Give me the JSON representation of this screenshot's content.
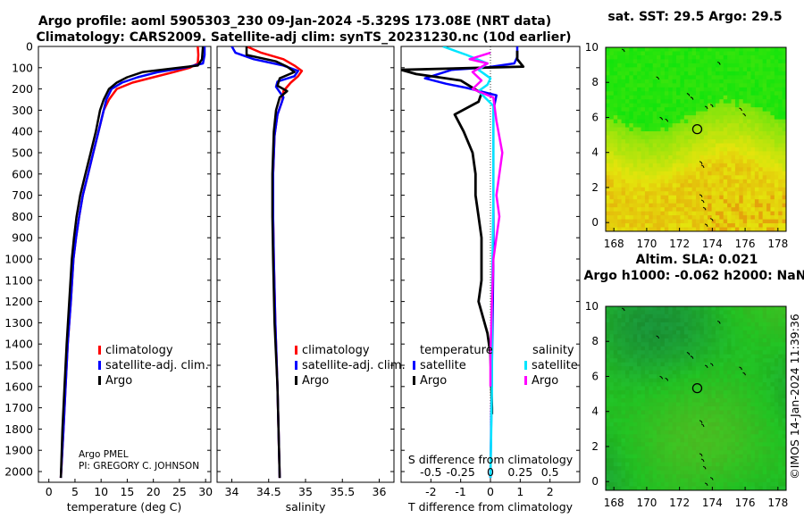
{
  "title_line1": "Argo profile: aoml 5905303_230 09-Jan-2024 -5.329S 173.08E (NRT data)",
  "title_line2": "Climatology: CARS2009. Satellite-adj clim: synTS_20231230.nc (10d earlier)",
  "depth_ticks": [
    "0",
    "100",
    "200",
    "300",
    "400",
    "500",
    "600",
    "700",
    "800",
    "900",
    "1000",
    "1100",
    "1200",
    "1300",
    "1400",
    "1500",
    "1600",
    "1700",
    "1800",
    "1900",
    "2000"
  ],
  "colors": {
    "climatology": "#ff0000",
    "satellite": "#0000ff",
    "argo": "#000000",
    "cyan": "#00e5ff",
    "magenta": "#ff00ff"
  },
  "chart_data": [
    {
      "type": "line",
      "name": "temperature profile",
      "xlabel": "temperature (deg C)",
      "xlim": [
        -2,
        31
      ],
      "x_ticks": [
        "0",
        "5",
        "10",
        "15",
        "20",
        "25",
        "30"
      ],
      "ylim": [
        2060,
        0
      ],
      "legend": [
        "climatology",
        "satellite-adj. clim.",
        "Argo"
      ],
      "annotation_1": "Argo PMEL",
      "annotation_2": "PI: GREGORY C. JOHNSON",
      "series": [
        {
          "name": "climatology",
          "points": [
            [
              28.5,
              0
            ],
            [
              28.6,
              40
            ],
            [
              28.5,
              80
            ],
            [
              27,
              100
            ],
            [
              24,
              120
            ],
            [
              20,
              145
            ],
            [
              16,
              170
            ],
            [
              13,
              200
            ],
            [
              11.5,
              250
            ],
            [
              10.5,
              300
            ],
            [
              9.5,
              400
            ],
            [
              8.5,
              500
            ],
            [
              7.5,
              600
            ],
            [
              6.5,
              700
            ],
            [
              5.8,
              800
            ],
            [
              5.2,
              900
            ],
            [
              4.7,
              1000
            ],
            [
              4.2,
              1200
            ],
            [
              3.6,
              1400
            ],
            [
              3.2,
              1600
            ],
            [
              2.8,
              1800
            ],
            [
              2.3,
              2030
            ]
          ]
        },
        {
          "name": "satellite-adj. clim.",
          "points": [
            [
              29.8,
              0
            ],
            [
              29.8,
              40
            ],
            [
              29.5,
              80
            ],
            [
              26,
              100
            ],
            [
              21,
              120
            ],
            [
              17,
              145
            ],
            [
              14,
              170
            ],
            [
              12,
              200
            ],
            [
              11,
              250
            ],
            [
              10.5,
              300
            ],
            [
              9.5,
              400
            ],
            [
              8.5,
              500
            ],
            [
              7.5,
              600
            ],
            [
              6.5,
              700
            ],
            [
              5.8,
              800
            ],
            [
              5.2,
              900
            ],
            [
              4.7,
              1000
            ],
            [
              4.2,
              1200
            ],
            [
              3.6,
              1400
            ],
            [
              3.2,
              1600
            ],
            [
              2.8,
              1800
            ],
            [
              2.3,
              2030
            ]
          ]
        },
        {
          "name": "Argo",
          "points": [
            [
              29.5,
              0
            ],
            [
              29.3,
              60
            ],
            [
              28.5,
              90
            ],
            [
              25,
              100
            ],
            [
              18,
              120
            ],
            [
              15,
              145
            ],
            [
              13,
              170
            ],
            [
              11.5,
              200
            ],
            [
              10.5,
              250
            ],
            [
              9.8,
              300
            ],
            [
              9,
              400
            ],
            [
              8,
              500
            ],
            [
              7,
              600
            ],
            [
              6,
              700
            ],
            [
              5.3,
              800
            ],
            [
              4.8,
              900
            ],
            [
              4.4,
              1000
            ],
            [
              3.9,
              1200
            ],
            [
              3.4,
              1400
            ],
            [
              3,
              1600
            ],
            [
              2.6,
              1800
            ],
            [
              2.3,
              2030
            ]
          ]
        }
      ]
    },
    {
      "type": "line",
      "name": "salinity profile",
      "xlabel": "salinity",
      "xlim": [
        33.8,
        36.2
      ],
      "x_ticks": [
        "34",
        "34.5",
        "35",
        "35.5",
        "36"
      ],
      "ylim": [
        2060,
        0
      ],
      "legend": [
        "climatology",
        "satellite-adj. clim.",
        "Argo"
      ],
      "series": [
        {
          "name": "climatology",
          "points": [
            [
              34.2,
              0
            ],
            [
              34.4,
              30
            ],
            [
              34.7,
              60
            ],
            [
              34.85,
              90
            ],
            [
              34.95,
              115
            ],
            [
              34.9,
              140
            ],
            [
              34.8,
              170
            ],
            [
              34.7,
              210
            ],
            [
              34.68,
              260
            ],
            [
              34.62,
              320
            ],
            [
              34.58,
              420
            ],
            [
              34.56,
              600
            ],
            [
              34.56,
              800
            ],
            [
              34.57,
              1000
            ],
            [
              34.59,
              1300
            ],
            [
              34.62,
              1600
            ],
            [
              34.65,
              2030
            ]
          ]
        },
        {
          "name": "satellite-adj. clim.",
          "points": [
            [
              34.0,
              0
            ],
            [
              34.05,
              30
            ],
            [
              34.3,
              60
            ],
            [
              34.7,
              90
            ],
            [
              34.9,
              115
            ],
            [
              34.85,
              140
            ],
            [
              34.62,
              165
            ],
            [
              34.6,
              190
            ],
            [
              34.7,
              240
            ],
            [
              34.62,
              320
            ],
            [
              34.58,
              420
            ],
            [
              34.56,
              600
            ],
            [
              34.56,
              800
            ],
            [
              34.57,
              1000
            ],
            [
              34.59,
              1300
            ],
            [
              34.62,
              1600
            ],
            [
              34.65,
              2030
            ]
          ]
        },
        {
          "name": "Argo",
          "points": [
            [
              34.2,
              0
            ],
            [
              34.2,
              40
            ],
            [
              34.6,
              70
            ],
            [
              34.75,
              95
            ],
            [
              34.85,
              120
            ],
            [
              34.65,
              150
            ],
            [
              34.62,
              185
            ],
            [
              34.75,
              210
            ],
            [
              34.65,
              240
            ],
            [
              34.6,
              300
            ],
            [
              34.57,
              400
            ],
            [
              34.55,
              600
            ],
            [
              34.55,
              800
            ],
            [
              34.56,
              1000
            ],
            [
              34.58,
              1300
            ],
            [
              34.62,
              1600
            ],
            [
              34.65,
              2030
            ]
          ]
        }
      ]
    },
    {
      "type": "line",
      "name": "difference from climatology",
      "xlabel": "T difference from climatology",
      "xlabel_top": "S difference from climatology",
      "xlim": [
        -3,
        3
      ],
      "x_ticks": [
        "-2",
        "-1",
        "0",
        "1",
        "2"
      ],
      "x_ticks_top": [
        "-0.5",
        "-0.25",
        "0",
        "0.25",
        "0.5"
      ],
      "ylim": [
        2060,
        0
      ],
      "legend_title_t": "temperature",
      "legend_title_s": "salinity",
      "legend_t": [
        "satellite",
        "Argo"
      ],
      "legend_s": [
        "satellite",
        "Argo"
      ],
      "series": [
        {
          "name": "T satellite",
          "points": [
            [
              0.9,
              0
            ],
            [
              0.9,
              50
            ],
            [
              0.8,
              80
            ],
            [
              -0.2,
              100
            ],
            [
              -1.3,
              110
            ],
            [
              -2.2,
              150
            ],
            [
              -1.5,
              175
            ],
            [
              -0.8,
              195
            ],
            [
              0.2,
              230
            ],
            [
              0.1,
              300
            ],
            [
              0.1,
              600
            ],
            [
              0.1,
              1000
            ],
            [
              0.05,
              1500
            ],
            [
              0,
              2030
            ]
          ]
        },
        {
          "name": "T Argo",
          "points": [
            [
              0.9,
              20
            ],
            [
              0.9,
              60
            ],
            [
              1.1,
              95
            ],
            [
              -3,
              110
            ],
            [
              -2.5,
              130
            ],
            [
              -1,
              160
            ],
            [
              -0.3,
              220
            ],
            [
              -0.4,
              260
            ],
            [
              -1.2,
              320
            ],
            [
              -0.9,
              400
            ],
            [
              -0.6,
              500
            ],
            [
              -0.5,
              600
            ],
            [
              -0.5,
              700
            ],
            [
              -0.4,
              800
            ],
            [
              -0.3,
              900
            ],
            [
              -0.3,
              1000
            ],
            [
              -0.3,
              1100
            ],
            [
              -0.4,
              1200
            ],
            [
              -0.1,
              1350
            ],
            [
              0,
              1450
            ],
            [
              0.05,
              1700
            ],
            [
              0.05,
              1730
            ]
          ]
        },
        {
          "name": "S satellite",
          "points": [
            [
              -1.6,
              0
            ],
            [
              -0.8,
              40
            ],
            [
              -0.1,
              80
            ],
            [
              -0.4,
              110
            ],
            [
              0,
              150
            ],
            [
              -0.1,
              180
            ],
            [
              -0.4,
              210
            ],
            [
              0.1,
              280
            ],
            [
              0.1,
              400
            ],
            [
              0.1,
              700
            ],
            [
              0.05,
              1200
            ],
            [
              0.05,
              1600
            ],
            [
              0,
              2030
            ]
          ]
        },
        {
          "name": "S Argo",
          "points": [
            [
              0,
              30
            ],
            [
              -0.7,
              60
            ],
            [
              -0.1,
              80
            ],
            [
              -0.6,
              120
            ],
            [
              -0.3,
              160
            ],
            [
              -0.6,
              200
            ],
            [
              0.1,
              240
            ],
            [
              0.2,
              350
            ],
            [
              0.4,
              500
            ],
            [
              0.2,
              700
            ],
            [
              0.3,
              800
            ],
            [
              0.1,
              1000
            ],
            [
              0.05,
              1200
            ],
            [
              0,
              1450
            ],
            [
              0,
              1600
            ]
          ]
        }
      ]
    },
    {
      "type": "heatmap",
      "name": "sat. SST map",
      "title": "sat. SST: 29.5 Argo: 29.5",
      "xlim": [
        167.5,
        178.5
      ],
      "ylim": [
        -0.5,
        10
      ],
      "x_ticks": [
        "168",
        "170",
        "172",
        "174",
        "176",
        "178"
      ],
      "y_ticks": [
        "0",
        "2",
        "4",
        "6",
        "8",
        "10"
      ],
      "argo_location": {
        "lon": 173.08,
        "lat": 5.33
      }
    },
    {
      "type": "heatmap",
      "name": "altimetry SLA map",
      "title_1": "Altim. SLA: 0.021",
      "title_2": "Argo h1000: -0.062 h2000: NaN",
      "xlim": [
        167.5,
        178.5
      ],
      "ylim": [
        -0.5,
        10
      ],
      "x_ticks": [
        "168",
        "170",
        "172",
        "174",
        "176",
        "178"
      ],
      "y_ticks": [
        "0",
        "2",
        "4",
        "6",
        "8",
        "10"
      ],
      "argo_location": {
        "lon": 173.08,
        "lat": 5.33
      }
    }
  ],
  "watermark": "©IMOS 14-Jan-2024 11:39:36"
}
